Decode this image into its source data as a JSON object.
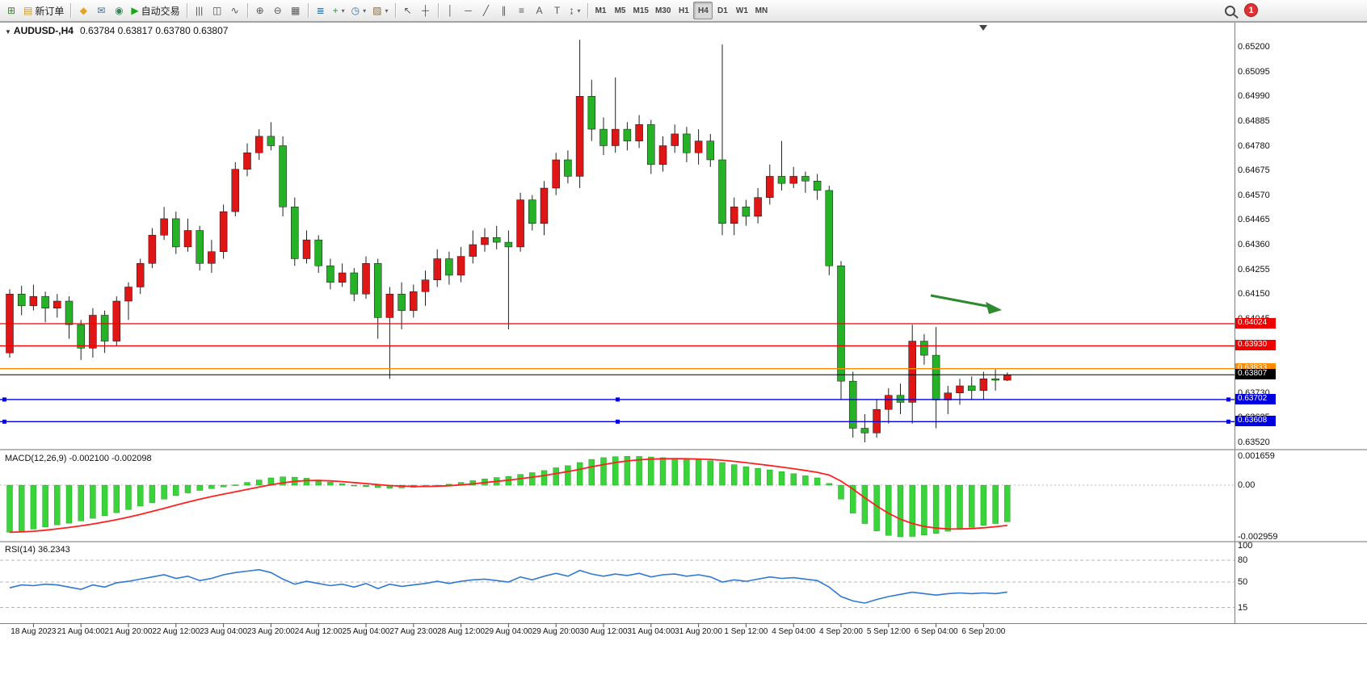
{
  "toolbar": {
    "buttons": [
      {
        "name": "new-chart-button",
        "icon": "⊞",
        "iconColor": "#3a7d3a"
      },
      {
        "name": "new-order-button",
        "icon": "▤",
        "iconColor": "#c89b2a",
        "label": "新订单"
      },
      {
        "sep": true
      },
      {
        "name": "mql5-community-button",
        "icon": "◆",
        "iconColor": "#e0a422"
      },
      {
        "name": "chat-button",
        "icon": "✉",
        "iconColor": "#3a6ea5"
      },
      {
        "name": "support-button",
        "icon": "◉",
        "iconColor": "#2e8b57"
      },
      {
        "name": "auto-trading-button",
        "icon": "▶",
        "iconColor": "#1aa51a",
        "label": "自动交易"
      },
      {
        "sep": true
      },
      {
        "name": "bar-chart-button",
        "icon": "|||"
      },
      {
        "name": "candlestick-chart-button",
        "icon": "◫"
      },
      {
        "name": "line-chart-button",
        "icon": "∿"
      },
      {
        "sep": true
      },
      {
        "name": "zoom-in-button",
        "icon": "⊕"
      },
      {
        "name": "zoom-out-button",
        "icon": "⊖"
      },
      {
        "name": "tile-windows-button",
        "icon": "▦"
      },
      {
        "sep": true
      },
      {
        "name": "indicators-list-button",
        "icon": "≣",
        "iconColor": "#3a6ea5"
      },
      {
        "name": "add-indicator-button",
        "icon": "+",
        "iconColor": "#1aa51a",
        "caret": true
      },
      {
        "name": "periods-button",
        "icon": "◷",
        "iconColor": "#3a6ea5",
        "caret": true
      },
      {
        "name": "templates-button",
        "icon": "▨",
        "iconColor": "#8a6d3b",
        "caret": true
      },
      {
        "sep": true
      },
      {
        "name": "cursor-button",
        "icon": "↖"
      },
      {
        "name": "crosshair-button",
        "icon": "┼"
      },
      {
        "sep": true
      },
      {
        "name": "vertical-line-button",
        "icon": "│"
      },
      {
        "name": "horizontal-line-button",
        "icon": "─"
      },
      {
        "name": "trendline-button",
        "icon": "╱"
      },
      {
        "name": "channel-button",
        "icon": "∥"
      },
      {
        "name": "fibonacci-button",
        "icon": "≡"
      },
      {
        "name": "text-button",
        "icon": "A"
      },
      {
        "name": "text-label-button",
        "icon": "T"
      },
      {
        "name": "arrows-button",
        "icon": "↨",
        "caret": true
      }
    ],
    "timeframes": [
      "M1",
      "M5",
      "M15",
      "M30",
      "H1",
      "H4",
      "D1",
      "W1",
      "MN"
    ],
    "active_timeframe": "H4",
    "notification_count": "1"
  },
  "chart": {
    "symbol_text": "AUDUSD-,H4",
    "ohlc_text": "0.63784 0.63817 0.63780 0.63807",
    "macd_label": "MACD(12,26,9) -0.002100 -0.002098",
    "rsi_label": "RSI(14) 36.2343"
  },
  "chart_data": {
    "type": "candlestick",
    "symbol": "AUDUSD-",
    "timeframe": "H4",
    "open": "0.63784",
    "high": "0.63817",
    "low": "0.63780",
    "close": "0.63807",
    "price_axis_labels": [
      "0.65200",
      "0.65095",
      "0.64990",
      "0.64885",
      "0.64780",
      "0.64675",
      "0.64570",
      "0.64465",
      "0.64360",
      "0.64255",
      "0.64150",
      "0.64045",
      "0.63940",
      "0.63835",
      "0.63730",
      "0.63625",
      "0.63520"
    ],
    "time_labels": [
      "18 Aug 2023",
      "21 Aug 04:00",
      "21 Aug 20:00",
      "22 Aug 12:00",
      "23 Aug 04:00",
      "23 Aug 20:00",
      "24 Aug 12:00",
      "25 Aug 04:00",
      "27 Aug 23:00",
      "28 Aug 12:00",
      "29 Aug 04:00",
      "29 Aug 20:00",
      "30 Aug 12:00",
      "31 Aug 04:00",
      "31 Aug 20:00",
      "1 Sep 12:00",
      "4 Sep 04:00",
      "4 Sep 20:00",
      "5 Sep 12:00",
      "6 Sep 04:00",
      "6 Sep 20:00"
    ],
    "candles": [
      [
        0.639,
        0.6417,
        0.6388,
        0.6415
      ],
      [
        0.6415,
        0.64185,
        0.6406,
        0.641
      ],
      [
        0.641,
        0.6419,
        0.6408,
        0.6414
      ],
      [
        0.6414,
        0.6416,
        0.6403,
        0.6409
      ],
      [
        0.6409,
        0.6415,
        0.6405,
        0.6412
      ],
      [
        0.6412,
        0.6414,
        0.6396,
        0.6402
      ],
      [
        0.6402,
        0.6404,
        0.6387,
        0.6392
      ],
      [
        0.6392,
        0.6409,
        0.6388,
        0.6406
      ],
      [
        0.6406,
        0.6408,
        0.639,
        0.6395
      ],
      [
        0.6395,
        0.6414,
        0.6393,
        0.6412
      ],
      [
        0.6412,
        0.642,
        0.6404,
        0.6418
      ],
      [
        0.6418,
        0.643,
        0.6415,
        0.6428
      ],
      [
        0.6428,
        0.6443,
        0.6426,
        0.644
      ],
      [
        0.644,
        0.6452,
        0.6438,
        0.6447
      ],
      [
        0.6447,
        0.645,
        0.6432,
        0.6435
      ],
      [
        0.6435,
        0.6447,
        0.6433,
        0.6442
      ],
      [
        0.6442,
        0.6444,
        0.6425,
        0.6428
      ],
      [
        0.6428,
        0.6438,
        0.6424,
        0.6433
      ],
      [
        0.6433,
        0.6453,
        0.643,
        0.645
      ],
      [
        0.645,
        0.6471,
        0.6448,
        0.6468
      ],
      [
        0.6468,
        0.6479,
        0.6465,
        0.6475
      ],
      [
        0.6475,
        0.6485,
        0.6472,
        0.6482
      ],
      [
        0.6482,
        0.6488,
        0.6476,
        0.6478
      ],
      [
        0.6478,
        0.6482,
        0.6448,
        0.6452
      ],
      [
        0.6452,
        0.6456,
        0.6427,
        0.643
      ],
      [
        0.643,
        0.6442,
        0.6428,
        0.6438
      ],
      [
        0.6438,
        0.644,
        0.6424,
        0.6427
      ],
      [
        0.6427,
        0.643,
        0.6417,
        0.642
      ],
      [
        0.642,
        0.6428,
        0.6418,
        0.6424
      ],
      [
        0.6424,
        0.6426,
        0.6412,
        0.6415
      ],
      [
        0.6415,
        0.6431,
        0.6413,
        0.6428
      ],
      [
        0.6428,
        0.643,
        0.6396,
        0.6405
      ],
      [
        0.6405,
        0.6418,
        0.6379,
        0.6415
      ],
      [
        0.6415,
        0.642,
        0.64,
        0.6408
      ],
      [
        0.6408,
        0.6419,
        0.6405,
        0.6416
      ],
      [
        0.6416,
        0.6425,
        0.641,
        0.6421
      ],
      [
        0.6421,
        0.6434,
        0.6418,
        0.643
      ],
      [
        0.643,
        0.6433,
        0.6419,
        0.6423
      ],
      [
        0.6423,
        0.6435,
        0.642,
        0.6431
      ],
      [
        0.6431,
        0.6442,
        0.6428,
        0.6436
      ],
      [
        0.6436,
        0.6443,
        0.6433,
        0.6439
      ],
      [
        0.6439,
        0.6444,
        0.6434,
        0.6437
      ],
      [
        0.6437,
        0.6442,
        0.64,
        0.6435
      ],
      [
        0.6435,
        0.6458,
        0.6433,
        0.6455
      ],
      [
        0.6455,
        0.6457,
        0.6442,
        0.6445
      ],
      [
        0.6445,
        0.6463,
        0.644,
        0.646
      ],
      [
        0.646,
        0.6475,
        0.6457,
        0.6472
      ],
      [
        0.6472,
        0.6476,
        0.6462,
        0.6465
      ],
      [
        0.6465,
        0.6523,
        0.646,
        0.6499
      ],
      [
        0.6499,
        0.6506,
        0.648,
        0.6485
      ],
      [
        0.6485,
        0.649,
        0.6474,
        0.6478
      ],
      [
        0.6478,
        0.6507,
        0.6475,
        0.6485
      ],
      [
        0.6485,
        0.6488,
        0.6476,
        0.648
      ],
      [
        0.648,
        0.6491,
        0.6477,
        0.6487
      ],
      [
        0.6487,
        0.6489,
        0.6466,
        0.647
      ],
      [
        0.647,
        0.6482,
        0.6467,
        0.6478
      ],
      [
        0.6478,
        0.6487,
        0.6475,
        0.6483
      ],
      [
        0.6483,
        0.6486,
        0.6471,
        0.6475
      ],
      [
        0.6475,
        0.6485,
        0.647,
        0.648
      ],
      [
        0.648,
        0.6483,
        0.6469,
        0.6472
      ],
      [
        0.6472,
        0.6521,
        0.644,
        0.6445
      ],
      [
        0.6445,
        0.6456,
        0.644,
        0.6452
      ],
      [
        0.6452,
        0.6455,
        0.6444,
        0.6448
      ],
      [
        0.6448,
        0.646,
        0.6445,
        0.6456
      ],
      [
        0.6456,
        0.647,
        0.6453,
        0.6465
      ],
      [
        0.6465,
        0.648,
        0.6459,
        0.6462
      ],
      [
        0.6462,
        0.6469,
        0.646,
        0.6465
      ],
      [
        0.6465,
        0.6467,
        0.6458,
        0.6463
      ],
      [
        0.6463,
        0.6466,
        0.6455,
        0.6459
      ],
      [
        0.6459,
        0.6461,
        0.6423,
        0.6427
      ],
      [
        0.6427,
        0.6429,
        0.637,
        0.6378
      ],
      [
        0.6378,
        0.6382,
        0.6354,
        0.6358
      ],
      [
        0.6358,
        0.6364,
        0.6352,
        0.6356
      ],
      [
        0.6356,
        0.637,
        0.6354,
        0.6366
      ],
      [
        0.6366,
        0.6375,
        0.636,
        0.6372
      ],
      [
        0.6372,
        0.6377,
        0.6364,
        0.6369
      ],
      [
        0.6369,
        0.6402,
        0.636,
        0.6395
      ],
      [
        0.6395,
        0.6398,
        0.6385,
        0.6389
      ],
      [
        0.6389,
        0.6401,
        0.6358,
        0.637
      ],
      [
        0.637,
        0.6376,
        0.6364,
        0.6373
      ],
      [
        0.6373,
        0.6379,
        0.6368,
        0.6376
      ],
      [
        0.6376,
        0.638,
        0.637,
        0.6374
      ],
      [
        0.6374,
        0.6382,
        0.637,
        0.6379
      ],
      [
        0.6379,
        0.6383,
        0.6374,
        0.63784
      ],
      [
        0.63784,
        0.63817,
        0.6378,
        0.63807
      ]
    ],
    "levels": [
      {
        "price": 0.64024,
        "label": "0.64024",
        "color": "#ee0000",
        "width": 1.3
      },
      {
        "price": 0.6393,
        "label": "0.63930",
        "color": "#ee0000",
        "width": 1.3
      },
      {
        "price": 0.63833,
        "label": "0.63833",
        "color": "#ff8c00",
        "width": 1.3
      },
      {
        "price": 0.63807,
        "label": "0.63807",
        "color": "#000000",
        "width": 1,
        "current": true
      },
      {
        "price": 0.63702,
        "label": "0.63702",
        "color": "#0000e0",
        "width": 1.3,
        "handles": true
      },
      {
        "price": 0.63608,
        "label": "0.63608",
        "color": "#0000e0",
        "width": 1.3,
        "handles": true
      }
    ],
    "macd": {
      "axis_labels": [
        "0.001659",
        "0.00",
        "-0.002959"
      ],
      "values": [
        -0.0027,
        -0.00262,
        -0.00252,
        -0.0024,
        -0.00228,
        -0.00218,
        -0.00205,
        -0.0019,
        -0.00175,
        -0.00158,
        -0.0014,
        -0.0012,
        -0.001,
        -0.0008,
        -0.0006,
        -0.00044,
        -0.0003,
        -0.0002,
        -0.0001,
        2e-05,
        0.00016,
        0.0003,
        0.00042,
        0.00048,
        0.00046,
        0.0004,
        0.0003,
        0.00018,
        8e-05,
        -2e-05,
        -8e-05,
        -0.00014,
        -0.00018,
        -0.00016,
        -0.00012,
        -8e-05,
        -2e-05,
        6e-05,
        0.00016,
        0.00026,
        0.00036,
        0.00044,
        0.0005,
        0.00062,
        0.00072,
        0.00084,
        0.001,
        0.00112,
        0.0013,
        0.00148,
        0.00158,
        0.00164,
        0.00166,
        0.00165,
        0.00162,
        0.00158,
        0.00154,
        0.0015,
        0.00146,
        0.0014,
        0.0013,
        0.00118,
        0.00106,
        0.00096,
        0.00088,
        0.00078,
        0.00066,
        0.00054,
        0.00042,
        0.0001,
        -0.0008,
        -0.0016,
        -0.0022,
        -0.00262,
        -0.00288,
        -0.00296,
        -0.00294,
        -0.00286,
        -0.00276,
        -0.00264,
        -0.00252,
        -0.00242,
        -0.0023,
        -0.0022,
        -0.0021
      ]
    },
    "rsi": {
      "axis_labels": [
        "100",
        "80",
        "50",
        "15"
      ],
      "levels": [
        80,
        50,
        15
      ],
      "values": [
        42,
        46,
        45,
        47,
        46,
        43,
        40,
        46,
        43,
        49,
        51,
        54,
        57,
        60,
        55,
        58,
        52,
        55,
        60,
        63,
        65,
        67,
        63,
        54,
        47,
        51,
        48,
        45,
        47,
        43,
        48,
        41,
        47,
        44,
        46,
        48,
        51,
        48,
        51,
        53,
        54,
        52,
        50,
        57,
        53,
        58,
        62,
        58,
        66,
        61,
        58,
        61,
        59,
        62,
        57,
        60,
        61,
        58,
        60,
        57,
        50,
        53,
        51,
        54,
        57,
        55,
        56,
        54,
        52,
        43,
        30,
        24,
        21,
        26,
        30,
        33,
        36,
        34,
        32,
        34,
        35,
        34,
        35,
        34,
        36.23
      ]
    },
    "colors": {
      "up": "#e01515",
      "down": "#26b226",
      "wick": "#222222",
      "macd_hist": "#39d439",
      "macd_signal": "#ff2020",
      "rsi_line": "#3079d0",
      "arrow_green": "#2d8a2d"
    }
  }
}
